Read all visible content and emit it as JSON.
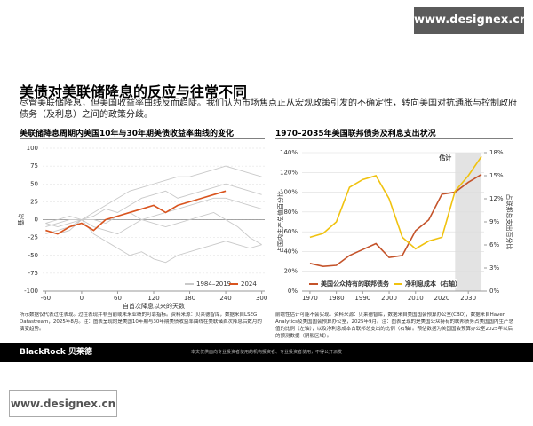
{
  "watermark_top": "www.designex.cn",
  "watermark_bottom": "www.designex.cn",
  "header": {
    "title": "美债对美联储降息的反应与往常不同",
    "subtitle": "尽管美联储降息，但美国收益率曲线反而趋陡。我们认为市场焦点正从宏观政策引发的不确定性，转向美国对抗通胀与控制政府债务（及利息）之间的政策分歧。"
  },
  "notes": {
    "left": "所示数据仅代表过往表现。过往表现并非当前或未来业绩的可靠指标。资料来源：贝莱德智库，数据来自LSEG Datastream，2025年8月。注：图表呈现的是美国10年期与30年期美债收益率曲线在美联储首次降息后数月的演变趋势。",
    "right": "前瞻性估计可能不会实现。资料来源：贝莱德智库，数据来自美国国会预算办公室(CBO)，数据来自Haver Analytics及美国国会预算办公室，2025年9月。注：图表呈现的是美国公众持有的联邦债务占美国国内生产总值的比例（左轴），以及净利息成本占联邦总支出的比例（右轴）。预估数据为美国国会预算办公室2025年以后的预测数据（阴影区域）。"
  },
  "footer": {
    "brand": "BlackRock 贝莱德",
    "disclaimer": "本文仅供面向专业投资者使用的机构投资者、专业投资者使用，不得公开派发"
  },
  "chart_data": [
    {
      "type": "line",
      "title": "美联储降息周期内美国10年与30年期美债收益率曲线的变化",
      "xlabel": "自首次降息以来的天数",
      "ylabel": "基点",
      "x": [
        -60,
        -40,
        -20,
        0,
        20,
        40,
        60,
        80,
        100,
        120,
        140,
        160,
        180,
        200,
        220,
        240,
        260,
        280,
        300
      ],
      "xlim": [
        -65,
        305
      ],
      "xticks": [
        -60,
        0,
        60,
        120,
        180,
        240,
        300
      ],
      "ylim": [
        -100,
        100
      ],
      "yticks": [
        100,
        75,
        50,
        25,
        0,
        -25,
        -50,
        -75,
        -100
      ],
      "grid": true,
      "legend": "lower right",
      "series": [
        {
          "name": "1984–2019",
          "color": "#c9c9c9",
          "values": [
            -5,
            -10,
            -5,
            0,
            10,
            20,
            30,
            40,
            45,
            50,
            55,
            60,
            60,
            65,
            70,
            75,
            70,
            65,
            60
          ]
        },
        {
          "color": "#c9c9c9",
          "values": [
            -10,
            -5,
            0,
            0,
            5,
            15,
            10,
            20,
            30,
            35,
            40,
            30,
            35,
            40,
            45,
            50,
            45,
            40,
            35
          ]
        },
        {
          "color": "#c9c9c9",
          "values": [
            -20,
            -15,
            -10,
            0,
            -10,
            -15,
            -20,
            -10,
            0,
            5,
            10,
            15,
            20,
            25,
            30,
            30,
            25,
            20,
            15
          ]
        },
        {
          "color": "#c9c9c9",
          "values": [
            -15,
            -20,
            -15,
            0,
            -20,
            -30,
            -40,
            -50,
            -45,
            -55,
            -60,
            -50,
            -45,
            -40,
            -35,
            -30,
            -35,
            -40,
            -35
          ]
        },
        {
          "color": "#c9c9c9",
          "values": [
            -5,
            0,
            5,
            0,
            0,
            -5,
            5,
            10,
            0,
            -5,
            -10,
            -5,
            0,
            5,
            10,
            0,
            -10,
            -25,
            -35
          ]
        },
        {
          "name": "2024",
          "color": "#d9541e",
          "values": [
            -15,
            -20,
            -10,
            -5,
            -15,
            0,
            5,
            10,
            15,
            20,
            10,
            20,
            25,
            30,
            35,
            40,
            null,
            null,
            null
          ]
        }
      ]
    },
    {
      "type": "line",
      "title": "1970–2035年美国联邦债务及利息支出状况",
      "ylabel": "占国内生产总值百分比",
      "y2label": "占联邦总支出百分比",
      "annotation": "估计",
      "shaded_xrange": [
        2025,
        2035
      ],
      "x": [
        1970,
        1975,
        1980,
        1985,
        1990,
        1995,
        2000,
        2005,
        2010,
        2015,
        2020,
        2025,
        2030,
        2035
      ],
      "xlim": [
        1967,
        2036
      ],
      "xticks": [
        1970,
        1980,
        1990,
        2000,
        2010,
        2020,
        2030
      ],
      "ylim": [
        0,
        140
      ],
      "yticks": [
        {
          "value": 0,
          "label": "0%"
        },
        {
          "value": 20,
          "label": "20%"
        },
        {
          "value": 40,
          "label": "40%"
        },
        {
          "value": 60,
          "label": "60%"
        },
        {
          "value": 80,
          "label": "80%"
        },
        {
          "value": 100,
          "label": "100%"
        },
        {
          "value": 120,
          "label": "120%"
        },
        {
          "value": 140,
          "label": "140%"
        }
      ],
      "y2lim": [
        0,
        18
      ],
      "y2ticks": [
        {
          "value": 0,
          "label": "0%"
        },
        {
          "value": 3,
          "label": "3%"
        },
        {
          "value": 6,
          "label": "6%"
        },
        {
          "value": 9,
          "label": "9%"
        },
        {
          "value": 12,
          "label": "12%"
        },
        {
          "value": 15,
          "label": "15%"
        },
        {
          "value": 18,
          "label": "18%"
        }
      ],
      "grid": true,
      "legend": "bottom",
      "series": [
        {
          "name": "美国公众持有的联邦债务",
          "color": "#c4532a",
          "values": [
            28,
            25,
            26,
            36,
            42,
            48,
            34,
            36,
            61,
            72,
            98,
            100,
            110,
            118
          ]
        },
        {
          "name": "净利息成本（右轴）",
          "color": "#f0c20f",
          "axis": "y2",
          "values": [
            7,
            7.5,
            9,
            13.5,
            14.5,
            15,
            12,
            7,
            5.5,
            6.5,
            7,
            13,
            15,
            17.5
          ]
        }
      ]
    }
  ]
}
